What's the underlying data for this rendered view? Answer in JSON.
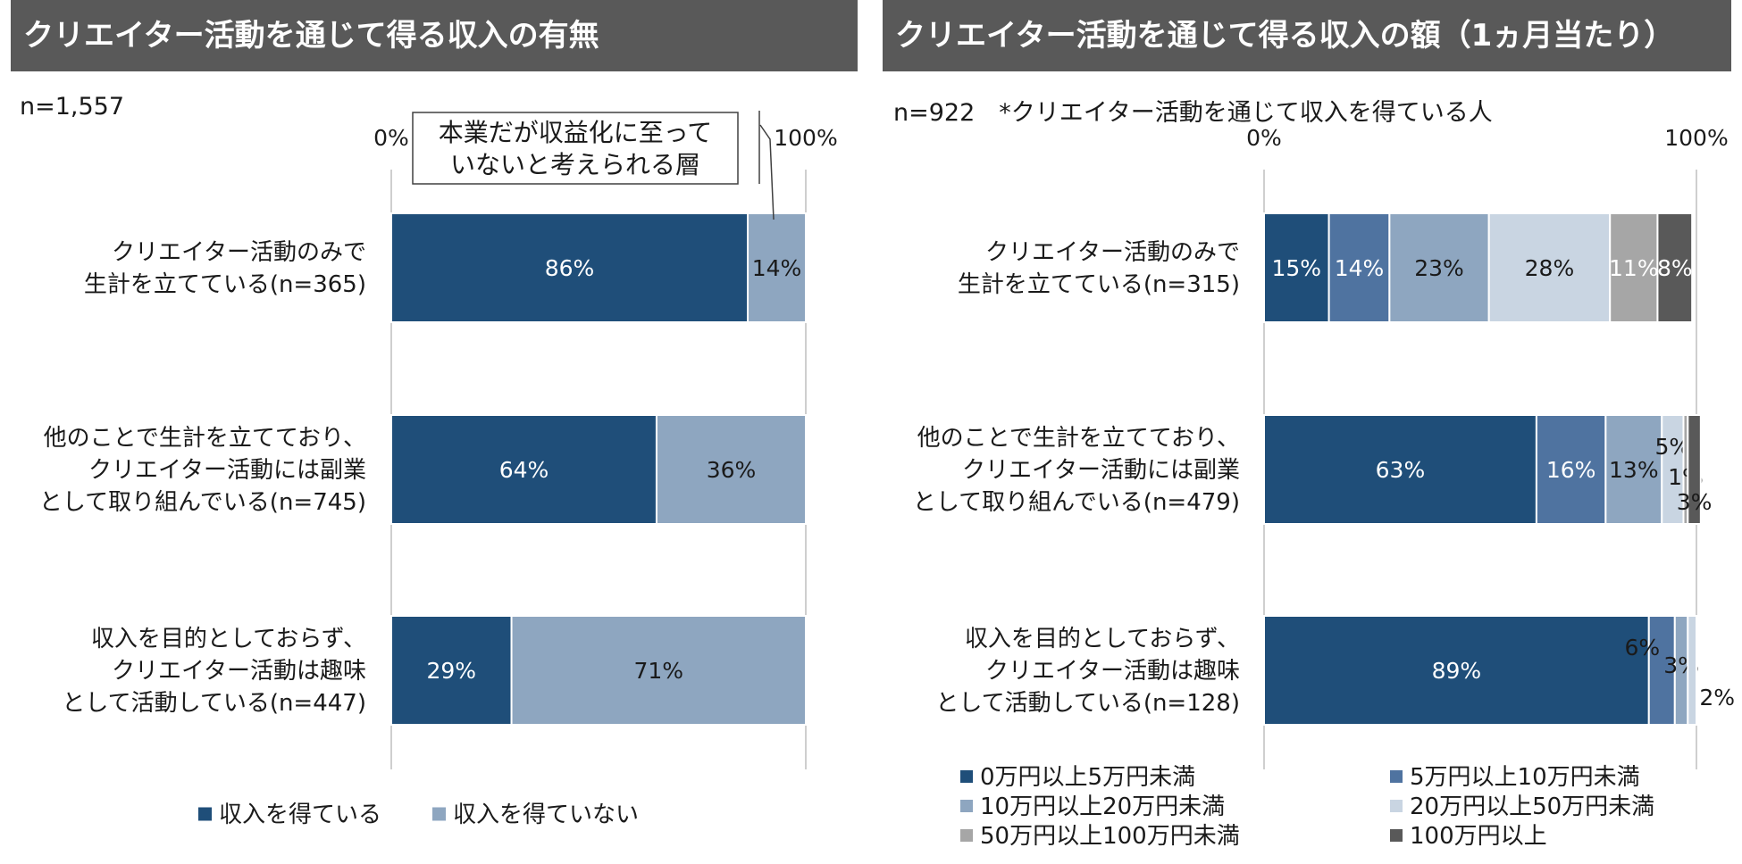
{
  "left": {
    "title": "クリエイター活動を通じて得る収入の有無",
    "n_note": "n=1,557",
    "callout_lines": [
      "本業だが収益化に至って",
      "いないと考えられる層"
    ]
  },
  "right": {
    "title": "クリエイター活動を通じて得る収入の額（1ヵ月当たり）",
    "n_note": "n=922　*クリエイター活動を通じて収入を得ている人"
  },
  "colors": {
    "c0": "#1f4e79",
    "c1": "#4f73a0",
    "c2": "#8ea6c0",
    "c3": "#c9d5e2",
    "c4": "#a6a6a6",
    "c5": "#595959",
    "axis": "#bfbfbf",
    "header": "#595959"
  },
  "chart_data": [
    {
      "type": "bar",
      "orientation": "horizontal",
      "stacked": "percent",
      "title": "クリエイター活動を通じて得る収入の有無",
      "xlim": [
        0,
        100
      ],
      "axis_ticks": [
        "0%",
        "100%"
      ],
      "categories": [
        [
          "クリエイター活動のみで",
          "生計を立てている(n=365)"
        ],
        [
          "他のことで生計を立てており、",
          "クリエイター活動には副業",
          "として取り組んでいる(n=745)"
        ],
        [
          "収入を目的としておらず、",
          "クリエイター活動は趣味",
          "として活動している(n=447)"
        ]
      ],
      "series": [
        {
          "name": "収入を得ている",
          "color": "#1f4e79",
          "values": [
            86,
            64,
            29
          ]
        },
        {
          "name": "収入を得ていない",
          "color": "#8ea6c0",
          "values": [
            14,
            36,
            71
          ]
        }
      ],
      "legend": "bottom"
    },
    {
      "type": "bar",
      "orientation": "horizontal",
      "stacked": "percent",
      "title": "クリエイター活動を通じて得る収入の額（1ヵ月当たり）",
      "xlim": [
        0,
        100
      ],
      "axis_ticks": [
        "0%",
        "100%"
      ],
      "categories": [
        [
          "クリエイター活動のみで",
          "生計を立てている(n=315)"
        ],
        [
          "他のことで生計を立てており、",
          "クリエイター活動には副業",
          "として取り組んでいる(n=479)"
        ],
        [
          "収入を目的としておらず、",
          "クリエイター活動は趣味",
          "として活動している(n=128)"
        ]
      ],
      "series": [
        {
          "name": "0万円以上5万円未満",
          "color": "#1f4e79",
          "values": [
            15,
            63,
            89
          ]
        },
        {
          "name": "5万円以上10万円未満",
          "color": "#4f73a0",
          "values": [
            14,
            16,
            6
          ]
        },
        {
          "name": "10万円以上20万円未満",
          "color": "#8ea6c0",
          "values": [
            23,
            13,
            3
          ]
        },
        {
          "name": "20万円以上50万円未満",
          "color": "#c9d5e2",
          "values": [
            28,
            5,
            2
          ]
        },
        {
          "name": "50万円以上100万円未満",
          "color": "#a6a6a6",
          "values": [
            11,
            1,
            0
          ]
        },
        {
          "name": "100万円以上",
          "color": "#595959",
          "values": [
            8,
            3,
            0
          ]
        }
      ],
      "legend": "bottom"
    }
  ]
}
